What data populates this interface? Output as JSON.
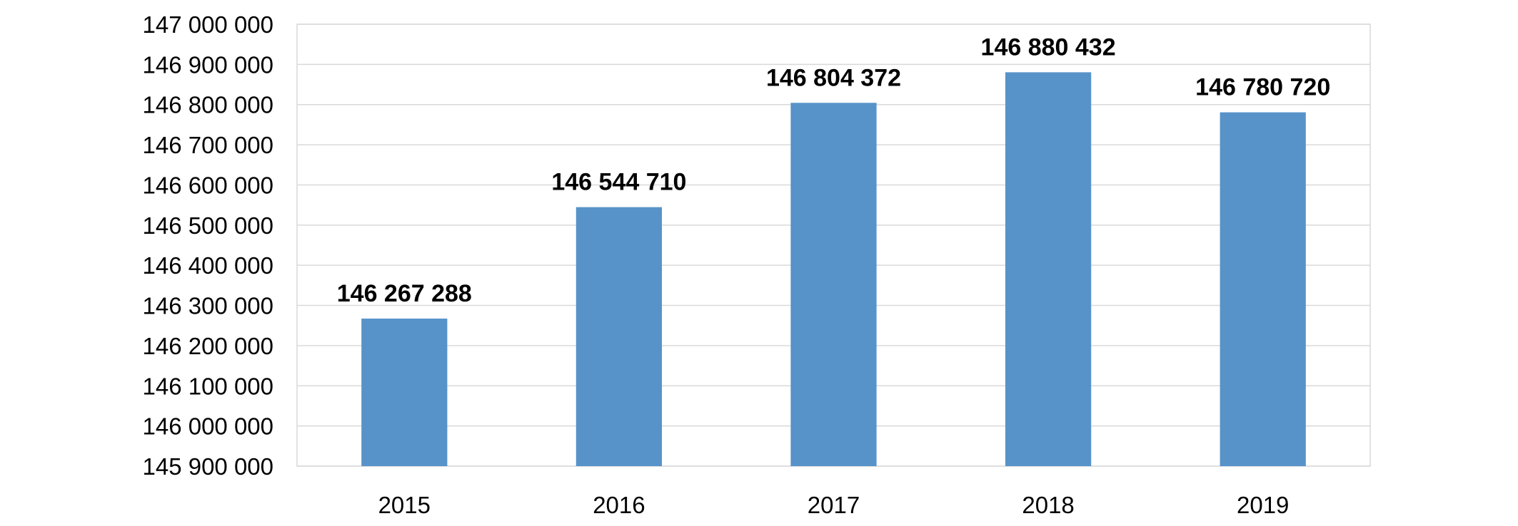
{
  "chart_data": {
    "type": "bar",
    "title": "",
    "xlabel": "",
    "ylabel": "",
    "categories": [
      "2015",
      "2016",
      "2017",
      "2018",
      "2019"
    ],
    "values": [
      146267288,
      146544710,
      146804372,
      146880432,
      146780720
    ],
    "value_labels": [
      "146 267 288",
      "146 544 710",
      "146 804 372",
      "146 880 432",
      "146 780 720"
    ],
    "ylim": [
      145900000,
      147000000
    ],
    "yticks": [
      145900000,
      146000000,
      146100000,
      146200000,
      146300000,
      146400000,
      146500000,
      146600000,
      146700000,
      146800000,
      146900000,
      147000000
    ],
    "ytick_labels": [
      "145 900 000",
      "146 000 000",
      "146 100 000",
      "146 200 000",
      "146 300 000",
      "146 400 000",
      "146 500 000",
      "146 600 000",
      "146 700 000",
      "146 800 000",
      "146 900 000",
      "147 000 000"
    ],
    "grid": true,
    "legend": "none",
    "bar_color": "#5793c9"
  }
}
